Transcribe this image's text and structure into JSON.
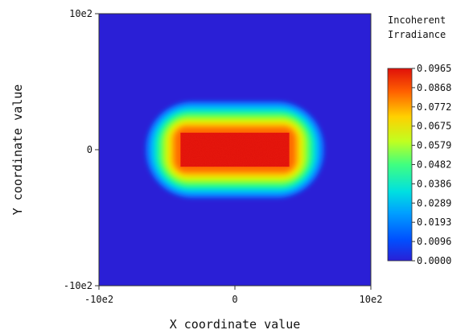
{
  "chart_data": {
    "type": "heatmap",
    "xlabel": "X coordinate value",
    "ylabel": "Y coordinate value",
    "xlim": [
      -1000,
      1000
    ],
    "ylim": [
      -1000,
      1000
    ],
    "x_ticks": [
      {
        "value": -1000,
        "label": "-10e2"
      },
      {
        "value": 0,
        "label": "0"
      },
      {
        "value": 1000,
        "label": "10e2"
      }
    ],
    "y_ticks": [
      {
        "value": 1000,
        "label": "10e2"
      },
      {
        "value": 0,
        "label": "0"
      },
      {
        "value": -1000,
        "label": "-10e2"
      }
    ],
    "colorbar": {
      "title_lines": [
        "Incoherent",
        "Irradiance"
      ],
      "min": 0.0,
      "max": 0.0965,
      "tick_labels": [
        "0.0965",
        "0.0868",
        "0.0772",
        "0.0675",
        "0.0579",
        "0.0482",
        "0.0386",
        "0.0289",
        "0.0193",
        "0.0096",
        "0.0000"
      ],
      "colormap": "jet"
    },
    "background_value": 0.0,
    "spot": {
      "center": [
        0,
        0
      ],
      "core_x_extent": [
        -400,
        400
      ],
      "core_y_extent": [
        -125,
        125
      ],
      "falloff_width": 330,
      "peak_value": 0.0965
    },
    "colors": {
      "background": "#2a1fd6",
      "core": "#e8190e",
      "axis": "#333333"
    }
  }
}
